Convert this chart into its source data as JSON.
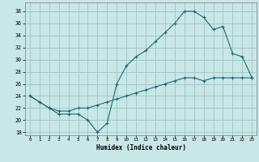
{
  "title": "",
  "xlabel": "Humidex (Indice chaleur)",
  "ylabel": "",
  "bg_color": "#c8e8e8",
  "grid_color": "#a8c8c8",
  "line_color": "#1a6b6b",
  "xlim": [
    -0.5,
    23.5
  ],
  "ylim": [
    17.5,
    39.5
  ],
  "yticks": [
    18,
    20,
    22,
    24,
    26,
    28,
    30,
    32,
    34,
    36,
    38
  ],
  "xticks": [
    0,
    1,
    2,
    3,
    4,
    5,
    6,
    7,
    8,
    9,
    10,
    11,
    12,
    13,
    14,
    15,
    16,
    17,
    18,
    19,
    20,
    21,
    22,
    23
  ],
  "xtick_labels": [
    "0",
    "1",
    "2",
    "3",
    "4",
    "5",
    "6",
    "7",
    "8",
    "9",
    "10",
    "11",
    "12",
    "13",
    "14",
    "15",
    "16",
    "17",
    "18",
    "19",
    "20",
    "21",
    "22",
    "23"
  ],
  "ytick_labels": [
    "18",
    "20",
    "22",
    "24",
    "26",
    "28",
    "30",
    "32",
    "34",
    "36",
    "38"
  ],
  "line1_x": [
    0,
    1,
    2,
    3,
    4,
    5,
    6,
    7,
    8,
    9,
    10,
    11,
    12,
    13,
    14,
    15,
    16,
    17,
    18,
    19,
    20,
    21,
    22,
    23
  ],
  "line1_y": [
    24,
    23,
    22,
    21,
    21,
    21,
    20,
    18,
    19.5,
    26,
    29,
    30.5,
    31.5,
    33,
    34.5,
    36,
    38,
    38,
    37,
    35,
    35.5,
    31,
    30.5,
    27
  ],
  "line2_x": [
    0,
    1,
    2,
    3,
    4,
    5,
    6,
    7,
    8,
    9,
    10,
    11,
    12,
    13,
    14,
    15,
    16,
    17,
    18,
    19,
    20,
    21,
    22,
    23
  ],
  "line2_y": [
    24,
    23,
    22,
    21.5,
    21.5,
    22,
    22,
    22.5,
    23,
    23.5,
    24,
    24.5,
    25,
    25.5,
    26,
    26.5,
    27,
    27,
    26.5,
    27,
    27,
    27,
    27,
    27
  ]
}
